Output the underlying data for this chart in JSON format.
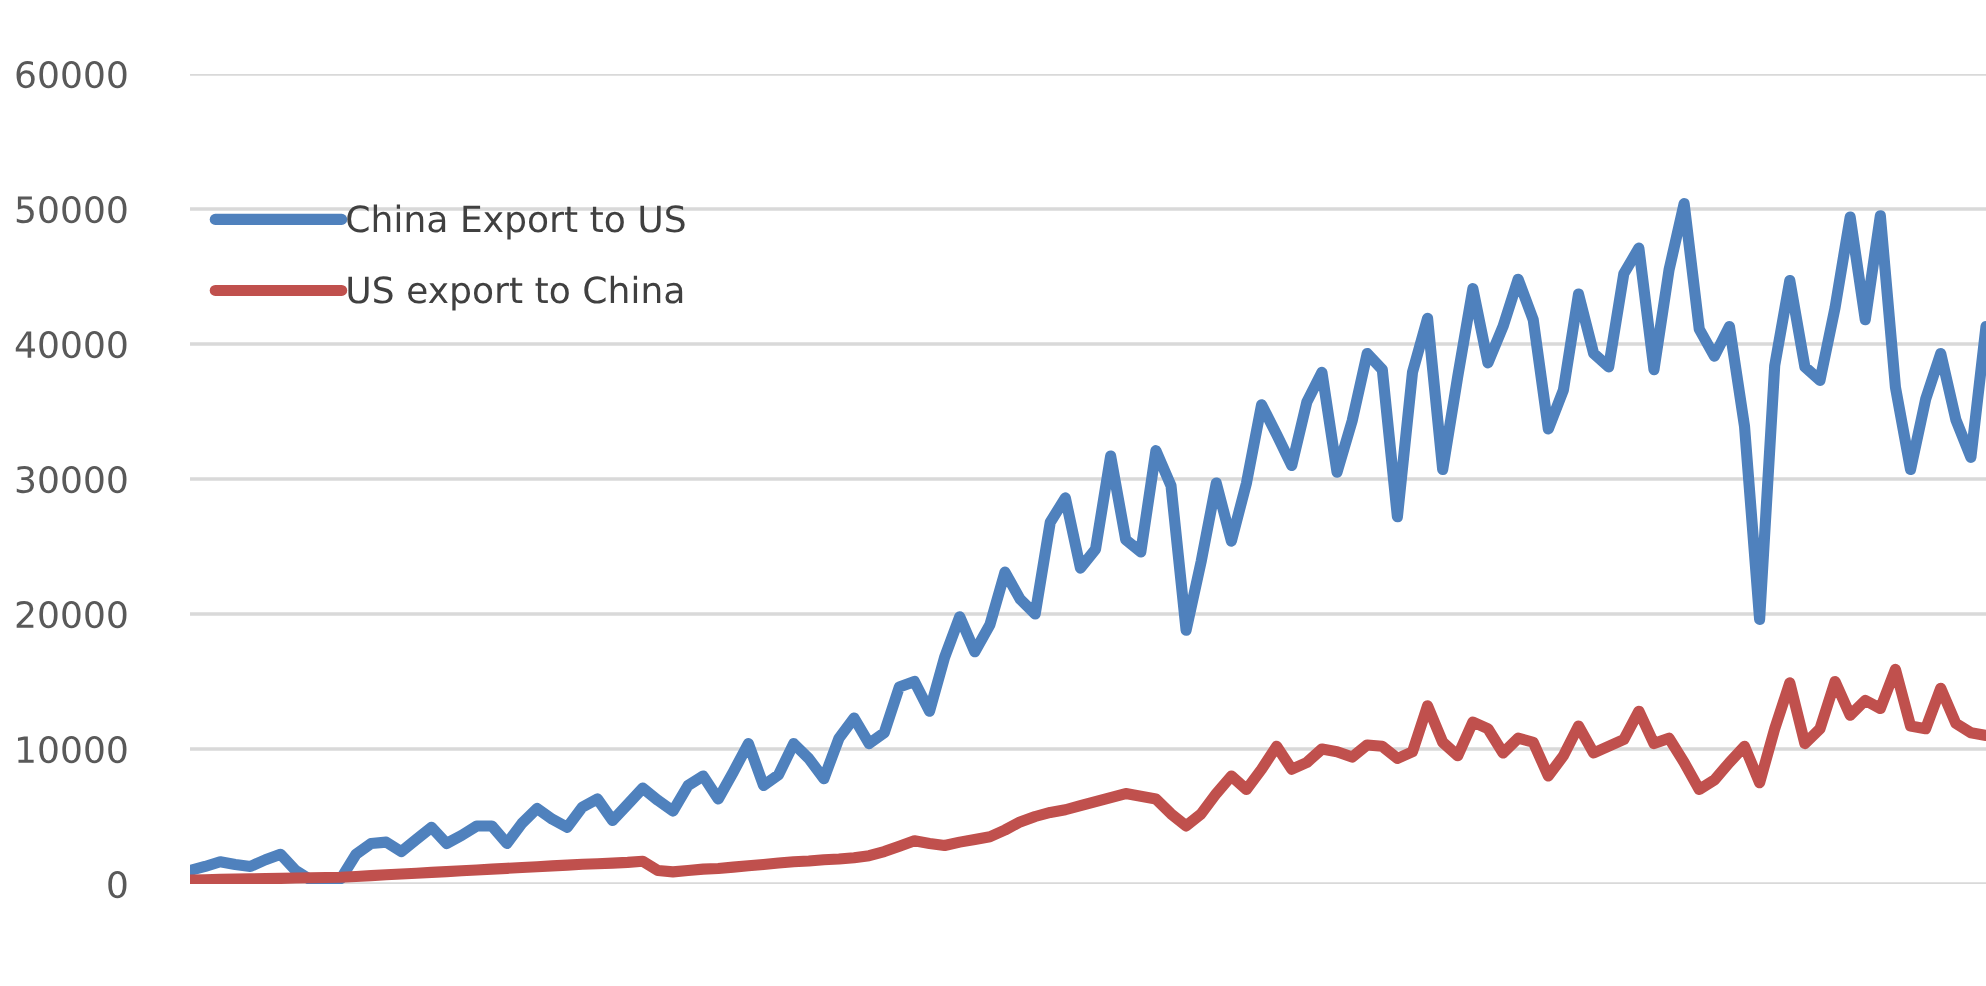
{
  "chart_data": {
    "type": "line",
    "categories": [
      null,
      null,
      null,
      null,
      null,
      null,
      null,
      null,
      null,
      null,
      null,
      null,
      null,
      null,
      null,
      null,
      null,
      null,
      null,
      null,
      null,
      null,
      null,
      null,
      null,
      null,
      null,
      null,
      null,
      null,
      null,
      null,
      null,
      null,
      null,
      null,
      null,
      null,
      null,
      null,
      null,
      null,
      null,
      null,
      null,
      null,
      null,
      null,
      null,
      null,
      null,
      null,
      null,
      null,
      null,
      null,
      null,
      null,
      null,
      null,
      null,
      null,
      null,
      null,
      null,
      null,
      null,
      null,
      null,
      null,
      null,
      null,
      null,
      null,
      null,
      null,
      null,
      null,
      null,
      null,
      null,
      null,
      null,
      null,
      null,
      null,
      null,
      null,
      null,
      null,
      null,
      null,
      null,
      null,
      null,
      null,
      null,
      null,
      null,
      null,
      null,
      null,
      null,
      null,
      null,
      null,
      null,
      null,
      null,
      null,
      null,
      null,
      null,
      null,
      null,
      null,
      null,
      null,
      null,
      null
    ],
    "ylim": [
      0,
      60000
    ],
    "yticks": [
      0,
      10000,
      20000,
      30000,
      40000,
      50000,
      60000
    ],
    "grid": "y",
    "legend": "top left",
    "marker": "none",
    "line_style": "solid",
    "series": [
      {
        "name": "China Export to US",
        "color": "#4f81bd",
        "values": [
          1000,
          1300,
          1650,
          1450,
          1300,
          1800,
          2200,
          1000,
          300,
          350,
          400,
          2200,
          3000,
          3100,
          2400,
          3300,
          4200,
          3000,
          3600,
          4300,
          4300,
          3000,
          4500,
          5600,
          4800,
          4200,
          5700,
          6300,
          4700,
          5900,
          7100,
          6200,
          5400,
          7300,
          8000,
          6300,
          8300,
          10400,
          7300,
          8100,
          10400,
          9300,
          7800,
          10800,
          12300,
          10400,
          11200,
          14600,
          15000,
          12800,
          16800,
          19800,
          17200,
          19200,
          23100,
          21100,
          20000,
          26800,
          28600,
          23400,
          24800,
          31700,
          25500,
          24600,
          32100,
          29500,
          18800,
          23900,
          29700,
          25400,
          29700,
          35500,
          33300,
          31000,
          35700,
          37900,
          30500,
          34300,
          39300,
          38100,
          27200,
          37900,
          41900,
          30700,
          37600,
          44100,
          38600,
          41300,
          44800,
          41800,
          33700,
          36600,
          43700,
          39300,
          38300,
          45200,
          47100,
          38100,
          45500,
          50400,
          41100,
          39100,
          41300,
          33900,
          19600,
          38400,
          44700,
          38300,
          37300,
          42700,
          49400,
          41800,
          49500,
          36800,
          30700,
          35900,
          39300,
          34400,
          31600,
          41300
        ]
      },
      {
        "name": "US export to China",
        "color": "#c0504d",
        "values": [
          300,
          320,
          340,
          360,
          380,
          400,
          420,
          440,
          460,
          480,
          500,
          560,
          620,
          680,
          740,
          800,
          860,
          920,
          980,
          1040,
          1100,
          1160,
          1220,
          1280,
          1340,
          1400,
          1460,
          1500,
          1550,
          1600,
          1680,
          1000,
          900,
          1000,
          1100,
          1150,
          1250,
          1350,
          1450,
          1550,
          1650,
          1700,
          1800,
          1850,
          1950,
          2100,
          2400,
          2800,
          3200,
          3000,
          2850,
          3100,
          3300,
          3500,
          4000,
          4600,
          5000,
          5300,
          5500,
          5800,
          6100,
          6400,
          6700,
          6500,
          6300,
          5200,
          4300,
          5200,
          6700,
          8000,
          7000,
          8500,
          10200,
          8500,
          9000,
          10000,
          9800,
          9400,
          10300,
          10200,
          9300,
          9800,
          13200,
          10500,
          9500,
          12000,
          11500,
          9700,
          10800,
          10500,
          8000,
          9500,
          11700,
          9700,
          10200,
          10700,
          12800,
          10400,
          10800,
          9000,
          7000,
          7700,
          9000,
          10200,
          7500,
          11500,
          14900,
          10400,
          11500,
          15000,
          12500,
          13600,
          13000,
          15900,
          11700,
          11500,
          14500,
          11900,
          11200,
          11000
        ]
      }
    ]
  }
}
